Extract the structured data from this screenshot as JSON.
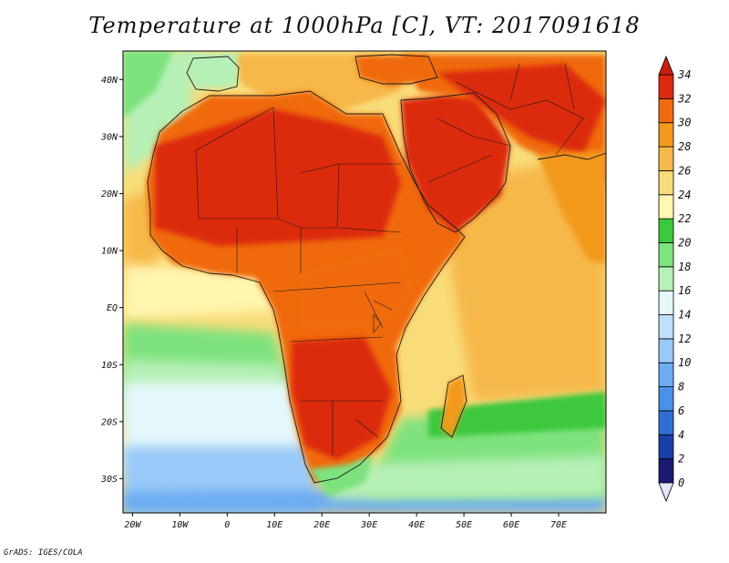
{
  "title": "Temperature at 1000hPa [C], VT: 2017091618",
  "footer": "GrADS: IGES/COLA",
  "map": {
    "lon_range": [
      -22,
      80
    ],
    "lat_range": [
      -36,
      45
    ],
    "lon_ticks": [
      {
        "value": -20,
        "label": "20W"
      },
      {
        "value": -10,
        "label": "10W"
      },
      {
        "value": 0,
        "label": "0"
      },
      {
        "value": 10,
        "label": "10E"
      },
      {
        "value": 20,
        "label": "20E"
      },
      {
        "value": 30,
        "label": "30E"
      },
      {
        "value": 40,
        "label": "40E"
      },
      {
        "value": 50,
        "label": "50E"
      },
      {
        "value": 60,
        "label": "60E"
      },
      {
        "value": 70,
        "label": "70E"
      }
    ],
    "lat_ticks": [
      {
        "value": 40,
        "label": "40N"
      },
      {
        "value": 30,
        "label": "30N"
      },
      {
        "value": 20,
        "label": "20N"
      },
      {
        "value": 10,
        "label": "10N"
      },
      {
        "value": 0,
        "label": "EQ"
      },
      {
        "value": -10,
        "label": "10S"
      },
      {
        "value": -20,
        "label": "20S"
      },
      {
        "value": -30,
        "label": "30S"
      }
    ]
  },
  "colorbar": {
    "levels": [
      0,
      2,
      4,
      6,
      8,
      10,
      12,
      14,
      16,
      18,
      20,
      22,
      24,
      26,
      28,
      30,
      32,
      34
    ],
    "colors": [
      "#191970",
      "#1a3fa8",
      "#2f6fd4",
      "#4a90e8",
      "#6cacf0",
      "#98c9f8",
      "#bee0fb",
      "#e4f7fb",
      "#b6f0b6",
      "#7ee27e",
      "#3cc83c",
      "#fff6b0",
      "#f9dc7a",
      "#f6b84a",
      "#f39a1e",
      "#f06a10",
      "#dc2a10"
    ],
    "under_color": "#e6e6fa",
    "over_color": "#c81e0f"
  },
  "colors": {
    "ocean_north_atlantic": "#f6b84a",
    "ocean_south_atlantic_cold": "#98c9f8",
    "ocean_indian": "#f6b84a",
    "land_hot": "#dc2a10",
    "land_warm": "#f06a10"
  }
}
